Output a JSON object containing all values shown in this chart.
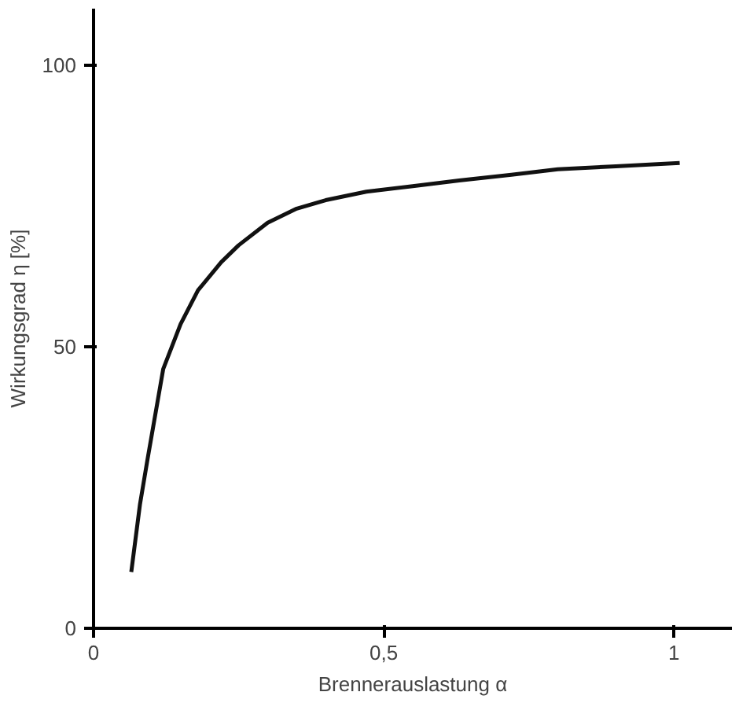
{
  "chart_data": {
    "type": "line",
    "xlabel": "Brennerauslastung α",
    "ylabel": "Wirkungsgrad η [%]",
    "x": [
      0.065,
      0.08,
      0.093,
      0.12,
      0.15,
      0.18,
      0.22,
      0.25,
      0.3,
      0.35,
      0.4,
      0.47,
      0.55,
      0.63,
      0.72,
      0.8,
      0.9,
      1.01
    ],
    "series": [
      {
        "color": "#111111",
        "values": [
          10,
          22,
          30,
          46,
          54,
          60,
          65,
          68,
          72,
          74.5,
          76,
          77.5,
          78.5,
          79.5,
          80.5,
          81.5,
          82,
          82.6
        ]
      }
    ],
    "xlim": [
      0,
      1.1
    ],
    "ylim": [
      0,
      110
    ],
    "xticks": [
      0,
      {
        "value": 0.5,
        "label": "0,5"
      },
      1
    ],
    "yticks": [
      0,
      50,
      100
    ],
    "grid": false,
    "marker": "none",
    "line_style": "solid"
  }
}
